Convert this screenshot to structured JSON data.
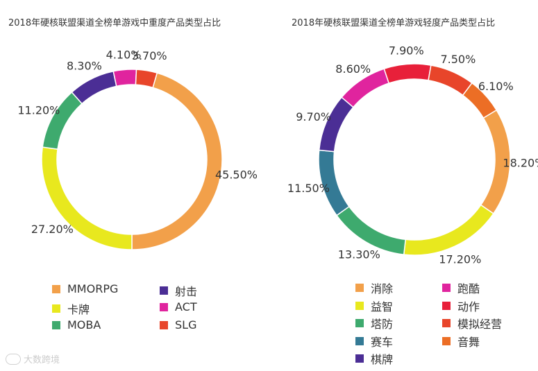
{
  "chart_data": [
    {
      "type": "pie",
      "donut": true,
      "title": "2018年硬核联盟渠道全榜单游戏中重度产品类型占比",
      "legend": "bottom",
      "slices": [
        {
          "label": "MMORPG",
          "value": 45.5,
          "value_label": "45.50%",
          "color": "#F2A04A"
        },
        {
          "label": "卡牌",
          "value": 27.2,
          "value_label": "27.20%",
          "color": "#E8E81E"
        },
        {
          "label": "MOBA",
          "value": 11.2,
          "value_label": "11.20%",
          "color": "#3EAA6E"
        },
        {
          "label": "射击",
          "value": 8.3,
          "value_label": "8.30%",
          "color": "#4B2E95"
        },
        {
          "label": "ACT",
          "value": 4.1,
          "value_label": "4.10%",
          "color": "#E0249E"
        },
        {
          "label": "SLG",
          "value": 3.7,
          "value_label": "3.70%",
          "color": "#E8452A"
        }
      ]
    },
    {
      "type": "pie",
      "donut": true,
      "title": "2018年硬核联盟渠道全榜单游戏轻度产品类型占比",
      "legend": "bottom",
      "slices": [
        {
          "label": "消除",
          "value": 18.2,
          "value_label": "18.20%",
          "color": "#F2A04A"
        },
        {
          "label": "益智",
          "value": 17.2,
          "value_label": "17.20%",
          "color": "#E8E81E"
        },
        {
          "label": "塔防",
          "value": 13.3,
          "value_label": "13.30%",
          "color": "#3EAA6E"
        },
        {
          "label": "赛车",
          "value": 11.5,
          "value_label": "11.50%",
          "color": "#347A95"
        },
        {
          "label": "棋牌",
          "value": 9.7,
          "value_label": "9.70%",
          "color": "#4B2E95"
        },
        {
          "label": "跑酷",
          "value": 8.6,
          "value_label": "8.60%",
          "color": "#E0249E"
        },
        {
          "label": "动作",
          "value": 7.9,
          "value_label": "7.90%",
          "color": "#E8203A"
        },
        {
          "label": "模拟经营",
          "value": 7.5,
          "value_label": "7.50%",
          "color": "#E8452A"
        },
        {
          "label": "音舞",
          "value": 6.1,
          "value_label": "6.10%",
          "color": "#EC6E25"
        }
      ]
    }
  ],
  "watermark": {
    "text": "大数跨境"
  }
}
